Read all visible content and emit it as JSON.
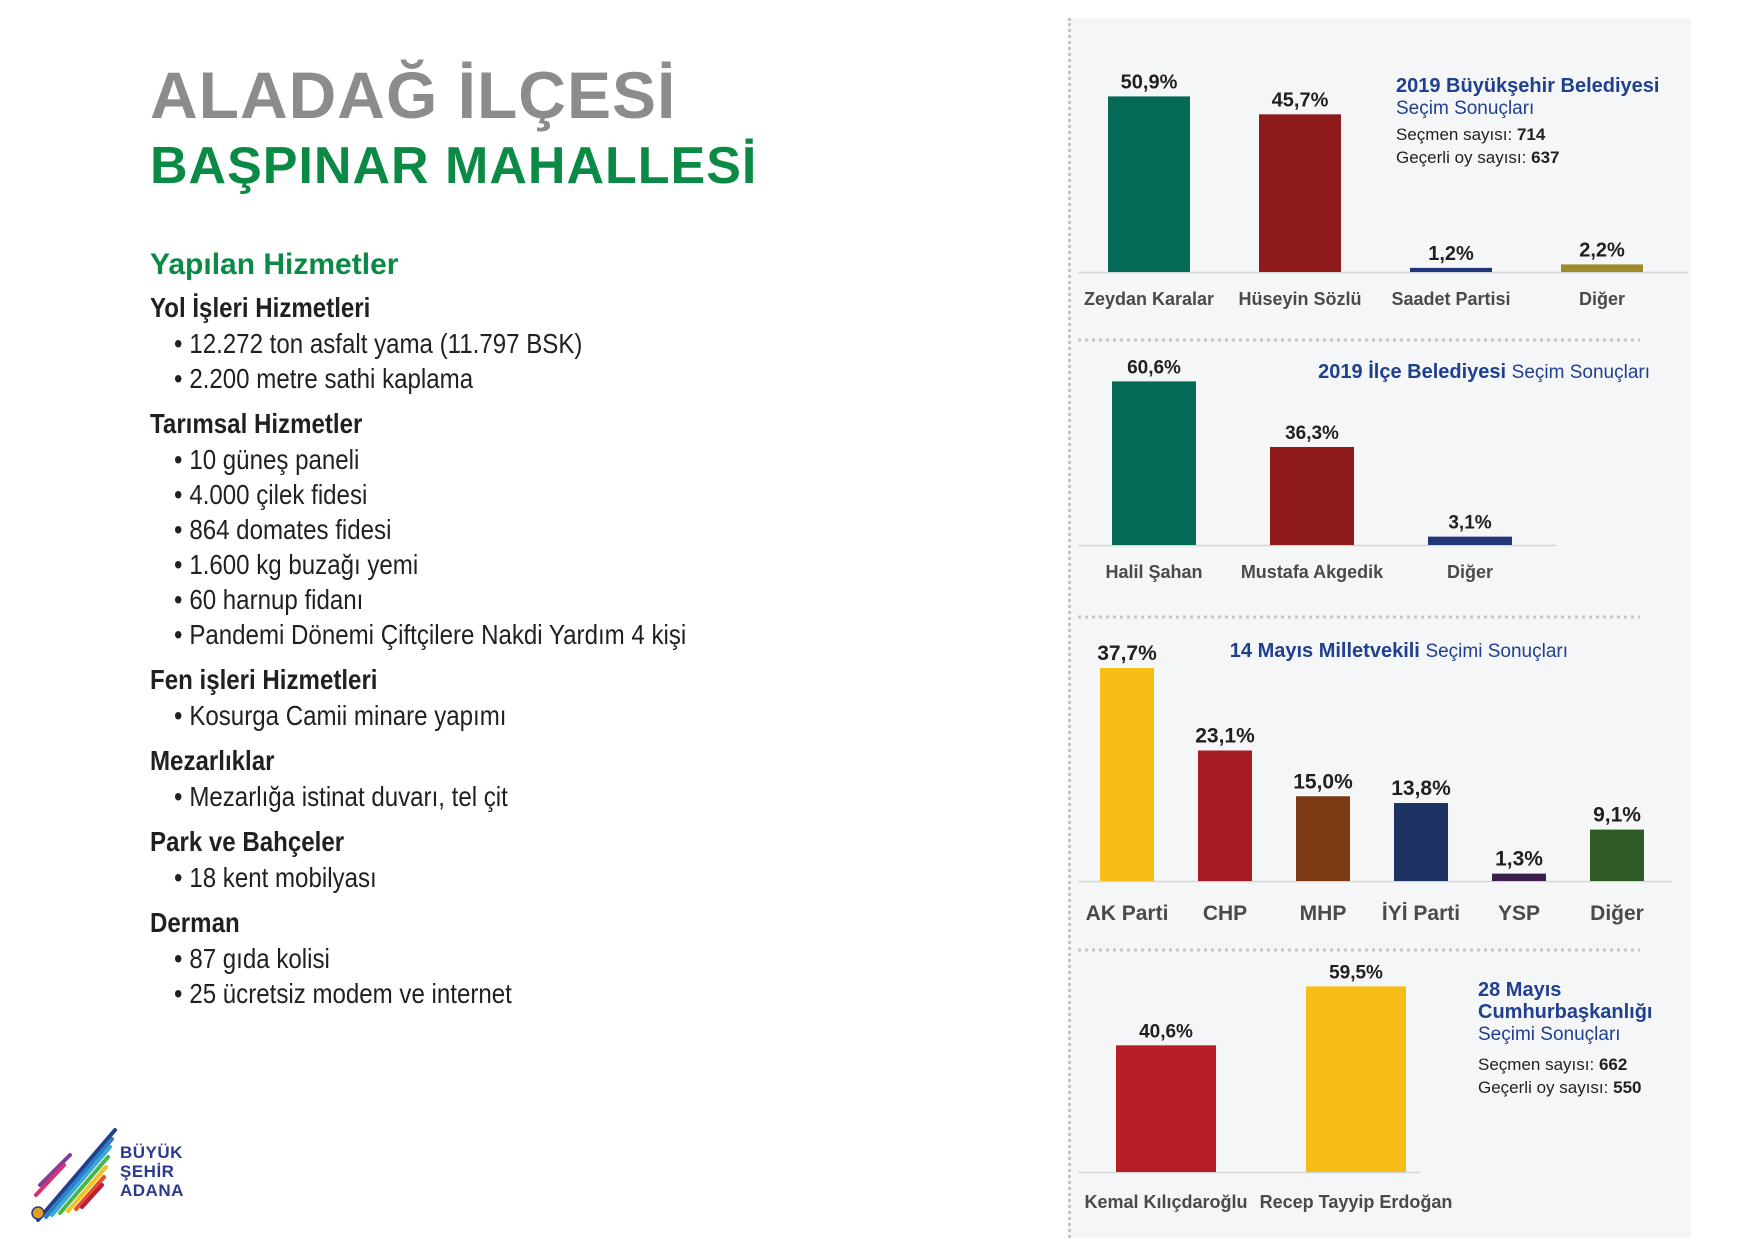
{
  "header": {
    "title_line1": "ALADAĞ İLÇESİ",
    "title_line2": "BAŞPINAR MAHALLESİ"
  },
  "services": {
    "heading": "Yapılan Hizmetler",
    "sections": [
      {
        "title": "Yol İşleri Hizmetleri",
        "items": [
          "12.272 ton asfalt yama (11.797 BSK)",
          "2.200 metre sathi kaplama"
        ]
      },
      {
        "title": "Tarımsal Hizmetler",
        "items": [
          "10 güneş paneli",
          "4.000 çilek fidesi",
          "864 domates fidesi",
          "1.600 kg buzağı yemi",
          "60 harnup fidanı",
          "Pandemi Dönemi Çiftçilere Nakdi Yardım 4 kişi"
        ]
      },
      {
        "title": "Fen işleri Hizmetleri",
        "items": [
          "Kosurga Camii minare yapımı"
        ]
      },
      {
        "title": "Mezarlıklar",
        "items": [
          "Mezarlığa istinat duvarı, tel çit"
        ]
      },
      {
        "title": "Park ve Bahçeler",
        "items": [
          "18 kent mobilyası"
        ]
      },
      {
        "title": "Derman",
        "items": [
          "87 gıda kolisi",
          "25 ücretsiz modem ve internet"
        ]
      }
    ]
  },
  "logo": {
    "line1": "BÜYÜK",
    "line2": "ŞEHİR",
    "line3": "ADANA"
  },
  "chart_data": [
    {
      "type": "bar",
      "title_bold": "2019 Büyükşehir Belediyesi",
      "title_light": "Seçim Sonuçları",
      "info": [
        {
          "label": "Seçmen sayısı: ",
          "value": "714"
        },
        {
          "label": "Geçerli oy sayısı: ",
          "value": "637"
        }
      ],
      "categories": [
        "Zeydan Karalar",
        "Hüseyin Sözlü",
        "Saadet Partisi",
        "Diğer"
      ],
      "values": [
        50.9,
        45.7,
        1.2,
        2.2
      ],
      "labels": [
        "50,9%",
        "45,7%",
        "1,2%",
        "2,2%"
      ],
      "colors": [
        "#056a55",
        "#8f1a1c",
        "#22377a",
        "#9f8a2c"
      ]
    },
    {
      "type": "bar",
      "title_bold": "2019 İlçe Belediyesi",
      "title_light": "Seçim Sonuçları",
      "info": [],
      "categories": [
        "Halil Şahan",
        "Mustafa Akgedik",
        "Diğer"
      ],
      "values": [
        60.6,
        36.3,
        3.1
      ],
      "labels": [
        "60,6%",
        "36,3%",
        "3,1%"
      ],
      "colors": [
        "#056a55",
        "#8f1a1c",
        "#22377a"
      ]
    },
    {
      "type": "bar",
      "title_bold": "14 Mayıs Milletvekili",
      "title_light": "Seçimi Sonuçları",
      "info": [],
      "categories": [
        "AK Parti",
        "CHP",
        "MHP",
        "İYİ Parti",
        "YSP",
        "Diğer"
      ],
      "values": [
        37.7,
        23.1,
        15.0,
        13.8,
        1.3,
        9.1
      ],
      "labels": [
        "37,7%",
        "23,1%",
        "15,0%",
        "13,8%",
        "1,3%",
        "9,1%"
      ],
      "colors": [
        "#f6bd16",
        "#a51c24",
        "#7b3a14",
        "#1e3264",
        "#3b1d4e",
        "#2f5a26"
      ]
    },
    {
      "type": "bar",
      "title_lines": [
        "28 Mayıs",
        "Cumhurbaşkanlığı"
      ],
      "title_light": "Seçimi Sonuçları",
      "info": [
        {
          "label": "Seçmen sayısı: ",
          "value": "662"
        },
        {
          "label": "Geçerli oy sayısı: ",
          "value": "550"
        }
      ],
      "categories": [
        "Kemal Kılıçdaroğlu",
        "Recep Tayyip Erdoğan"
      ],
      "values": [
        40.6,
        59.5
      ],
      "labels": [
        "40,6%",
        "59,5%"
      ],
      "colors": [
        "#b81e25",
        "#f6bd16"
      ]
    }
  ]
}
